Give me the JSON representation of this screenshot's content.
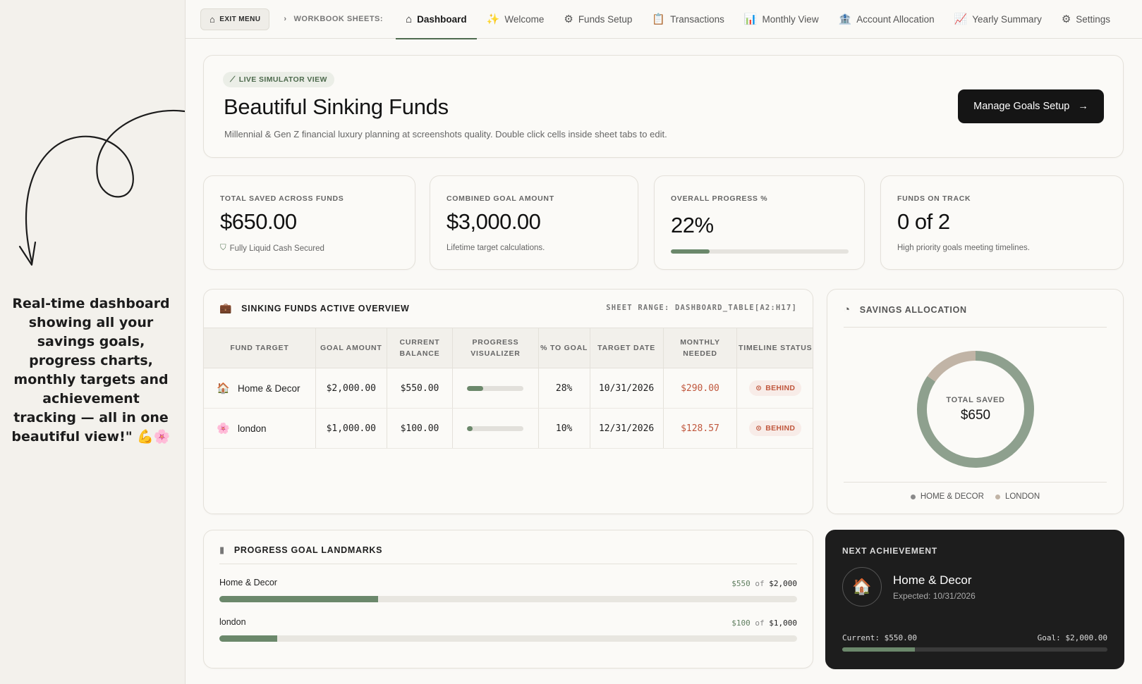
{
  "promo": {
    "text": "Real-time dashboard showing all your savings goals, progress charts, monthly targets and achievement tracking — all in one beautiful view!\" 💪🌸"
  },
  "topbar": {
    "exit_label": "EXIT MENU",
    "crumb_label": "WORKBOOK SHEETS:",
    "tabs": [
      {
        "label": "Dashboard",
        "icon": "house-icon",
        "glyph": "⌂",
        "active": true
      },
      {
        "label": "Welcome",
        "icon": "sparkle-icon",
        "glyph": "✨"
      },
      {
        "label": "Funds Setup",
        "icon": "gear-badge-icon",
        "glyph": "⚙"
      },
      {
        "label": "Transactions",
        "icon": "clipboard-icon",
        "glyph": "📋"
      },
      {
        "label": "Monthly View",
        "icon": "bar-chart-icon",
        "glyph": "📊"
      },
      {
        "label": "Account Allocation",
        "icon": "building-icon",
        "glyph": "🏦"
      },
      {
        "label": "Yearly Summary",
        "icon": "trend-chart-icon",
        "glyph": "📈"
      },
      {
        "label": "Settings",
        "icon": "gear-icon",
        "glyph": "⚙"
      }
    ]
  },
  "hero": {
    "badge": "LIVE SIMULATOR VIEW",
    "title": "Beautiful Sinking Funds",
    "subtitle": "Millennial & Gen Z financial luxury planning at screenshots quality. Double click cells inside sheet tabs to edit.",
    "button": "Manage Goals Setup"
  },
  "stats": {
    "total_saved": {
      "label": "TOTAL SAVED ACROSS FUNDS",
      "value": "$650.00",
      "sub": "Fully Liquid Cash Secured"
    },
    "combined_goal": {
      "label": "COMBINED GOAL AMOUNT",
      "value": "$3,000.00",
      "sub": "Lifetime target calculations."
    },
    "overall_progress": {
      "label": "OVERALL PROGRESS %",
      "value": "22%",
      "progress": 0.22
    },
    "funds_on_track": {
      "label": "FUNDS ON TRACK",
      "value": "0 of 2",
      "sub": "High priority goals meeting timelines."
    }
  },
  "overview": {
    "title": "SINKING FUNDS ACTIVE OVERVIEW",
    "range": "SHEET RANGE: DASHBOARD_TABLE[A2:H17]",
    "columns": [
      "FUND TARGET",
      "GOAL AMOUNT",
      "CURRENT BALANCE",
      "PROGRESS VISUALIZER",
      "% TO GOAL",
      "TARGET DATE",
      "MONTHLY NEEDED",
      "TIMELINE STATUS"
    ],
    "rows": [
      {
        "fund": "Home & Decor",
        "icon": "house-decor-icon",
        "glyph": "🏠",
        "goal": "$2,000.00",
        "balance": "$550.00",
        "progress": 0.28,
        "pct": "28%",
        "date": "10/31/2026",
        "monthly": "$290.00",
        "status": "BEHIND"
      },
      {
        "fund": "london",
        "icon": "flower-icon",
        "glyph": "🌸",
        "goal": "$1,000.00",
        "balance": "$100.00",
        "progress": 0.1,
        "pct": "10%",
        "date": "12/31/2026",
        "monthly": "$128.57",
        "status": "BEHIND"
      }
    ]
  },
  "allocation": {
    "title": "SAVINGS ALLOCATION",
    "center_label": "TOTAL SAVED",
    "center_value": "$650",
    "legend": [
      {
        "name": "HOME & DECOR",
        "color": "#8ea08e"
      },
      {
        "name": "LONDON",
        "color": "#c1b4a6"
      }
    ]
  },
  "chart_data": {
    "type": "pie",
    "categories": [
      "HOME & DECOR",
      "LONDON"
    ],
    "values": [
      550,
      100
    ],
    "colors": [
      "#8ea08e",
      "#c1b4a6"
    ],
    "title": "SAVINGS ALLOCATION"
  },
  "landmarks": {
    "title": "PROGRESS GOAL LANDMARKS",
    "of_word": "of",
    "items": [
      {
        "name": "Home & Decor",
        "current": "$550",
        "goal": "$2,000",
        "progress": 0.275
      },
      {
        "name": "london",
        "current": "$100",
        "goal": "$1,000",
        "progress": 0.1
      }
    ]
  },
  "next": {
    "label": "NEXT ACHIEVEMENT",
    "name": "Home & Decor",
    "expected": "Expected: 10/31/2026",
    "current": "Current: $550.00",
    "goal": "Goal: $2,000.00",
    "progress": 0.275
  },
  "colors": {
    "accent": "#6b886b",
    "danger": "#c0573d",
    "dark": "#151515"
  }
}
